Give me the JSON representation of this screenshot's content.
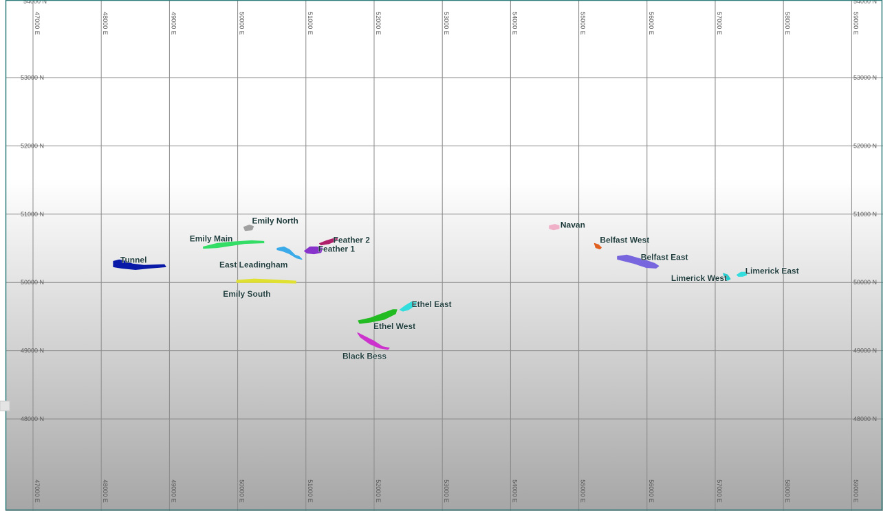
{
  "map": {
    "easting_ticks": [
      47000,
      48000,
      49000,
      50000,
      51000,
      52000,
      53000,
      54000,
      55000,
      56000,
      57000,
      58000,
      59000
    ],
    "northing_ticks": [
      48000,
      49000,
      50000,
      51000,
      52000,
      53000
    ],
    "easting_labels": [
      "47000 E",
      "48000 E",
      "49000 E",
      "50000 E",
      "51000 E",
      "52000 E",
      "53000 E",
      "54000 E",
      "55000 E",
      "56000 E",
      "57000 E",
      "58000 E",
      "59000 E"
    ],
    "northing_labels": [
      "48000 N",
      "49000 N",
      "50000 N",
      "51000 N",
      "52000 N",
      "53000 N"
    ],
    "top_partial_label": "54000 N",
    "background": {
      "top": "#ffffff",
      "bottom": "#a6a6a6"
    },
    "frame_color": "#2a7a7a",
    "grid_color": "#8a8a8a"
  },
  "orebodies": [
    {
      "name": "Tunnel",
      "color": "#0a1aa8",
      "easting": 48300,
      "northing": 50250
    },
    {
      "name": "Emily North",
      "color": "#a0a0a0",
      "easting": 50150,
      "northing": 50790
    },
    {
      "name": "Emily Main",
      "color": "#33dd66",
      "easting": 49900,
      "northing": 50540
    },
    {
      "name": "East Leadingham",
      "color": "#3aaae8",
      "easting": 50800,
      "northing": 50460
    },
    {
      "name": "Feather 2",
      "color": "#b0206a",
      "easting": 51300,
      "northing": 50590
    },
    {
      "name": "Feather 1",
      "color": "#8833cc",
      "easting": 51120,
      "northing": 50480
    },
    {
      "name": "Emily South",
      "color": "#e0e030",
      "easting": 50450,
      "northing": 50010
    },
    {
      "name": "Ethel East",
      "color": "#33dddd",
      "easting": 52500,
      "northing": 49660
    },
    {
      "name": "Ethel West",
      "color": "#22bb22",
      "easting": 52050,
      "northing": 49500
    },
    {
      "name": "Black Bess",
      "color": "#cc33cc",
      "easting": 52000,
      "northing": 49100
    },
    {
      "name": "Navan",
      "color": "#f0b0c8",
      "easting": 54650,
      "northing": 50810
    },
    {
      "name": "Belfast West",
      "color": "#e06020",
      "easting": 55270,
      "northing": 50530
    },
    {
      "name": "Belfast East",
      "color": "#7766dd",
      "easting": 55950,
      "northing": 50260
    },
    {
      "name": "Limerick West",
      "color": "#22cccc",
      "easting": 57180,
      "northing": 50070
    },
    {
      "name": "Limerick East",
      "color": "#33dddd",
      "easting": 57380,
      "northing": 50130
    }
  ]
}
